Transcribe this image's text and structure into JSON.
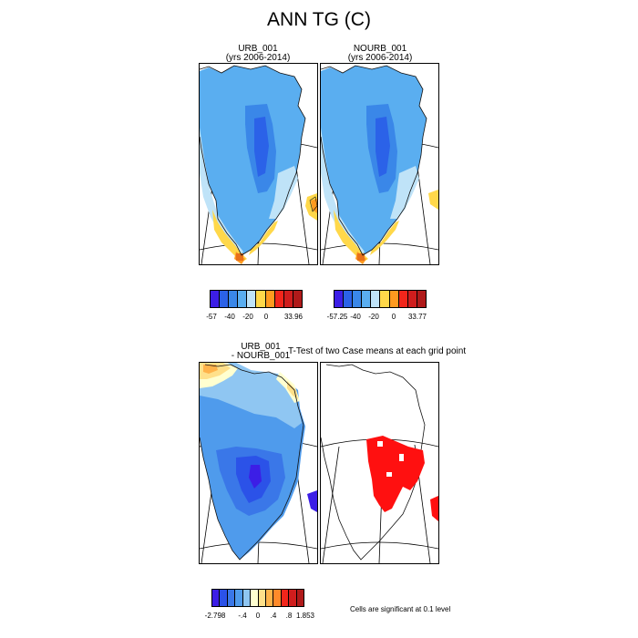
{
  "figure": {
    "title": "ANN TG (C)"
  },
  "panels": {
    "urb": {
      "title_line1": "URB_001",
      "title_line2": "(yrs 2006-2014)"
    },
    "nourb": {
      "title_line1": "NOURB_001",
      "title_line2": "(yrs 2006-2014)"
    },
    "diff": {
      "title_line1": "URB_001",
      "title_line2": "- NOURB_001"
    },
    "ttest": {
      "title": "T-Test of two Case means at each grid point"
    }
  },
  "colorbars": {
    "urb": {
      "colors": [
        "#3c1ee6",
        "#2b62e8",
        "#3a87e8",
        "#5aaef0",
        "#bfe3f8",
        "#ffd84a",
        "#ff9a1f",
        "#f2261b",
        "#d01d1d",
        "#b01a1a"
      ],
      "labels": [
        "-57",
        "-40",
        "-20",
        "0",
        "33.96"
      ]
    },
    "nourb": {
      "colors": [
        "#3c1ee6",
        "#2b62e8",
        "#3a87e8",
        "#5aaef0",
        "#bfe3f8",
        "#ffd84a",
        "#ff9a1f",
        "#f2261b",
        "#d01d1d",
        "#b01a1a"
      ],
      "labels": [
        "-57.25",
        "-40",
        "-20",
        "0",
        "33.77"
      ]
    },
    "diff": {
      "colors": [
        "#3c1ee6",
        "#2b52e8",
        "#3a77e8",
        "#4f9bec",
        "#8fc6f2",
        "#ffffd0",
        "#ffe08a",
        "#ffb34a",
        "#ff8a2a",
        "#f2261b",
        "#d01d1d",
        "#b01a1a"
      ],
      "labels": [
        "-2.798",
        "-.4",
        "0",
        ".4",
        ".8",
        "1.853"
      ]
    }
  },
  "significance_note": "Cells are significant at 0.1 level"
}
